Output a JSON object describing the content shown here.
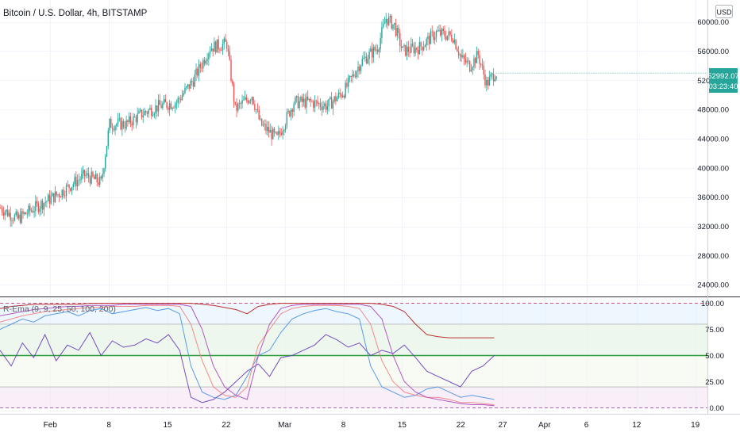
{
  "header": {
    "title": "Bitcoin / U.S. Dollar, 4h, BITSTAMP",
    "currency": "USD"
  },
  "price_badge": {
    "price": "52992.07",
    "countdown": "03:23:40"
  },
  "indicator": {
    "label": "R-Ema (9, 9, 25, 50, 100, 200)"
  },
  "colors": {
    "up": "#26a69a",
    "down": "#ef5350",
    "badge": "#26a69a",
    "mid_line": "#2e9c3a",
    "upper_dashed": "#c2185b",
    "lower_dashed": "#9c27b0"
  },
  "chart_data": [
    {
      "type": "candlestick",
      "title": "Bitcoin / U.S. Dollar, 4h, BITSTAMP",
      "y_axis_labels": [
        "60000.00",
        "56000.00",
        "52000.00",
        "48000.00",
        "44000.00",
        "40000.00",
        "36000.00",
        "32000.00",
        "28000.00",
        "24000.00"
      ],
      "ylim": [
        22500,
        63000
      ],
      "x_axis_labels": [
        "Feb",
        "8",
        "15",
        "22",
        "Mar",
        "8",
        "15",
        "22",
        "27",
        "Apr",
        "6",
        "12",
        "19"
      ],
      "last_price": 52992.07,
      "approx_close_path": [
        {
          "date": "2021-01-26",
          "price": 34500
        },
        {
          "date": "2021-01-28",
          "price": 33000
        },
        {
          "date": "2021-01-30",
          "price": 34500
        },
        {
          "date": "2021-02-02",
          "price": 36500
        },
        {
          "date": "2021-02-05",
          "price": 39000
        },
        {
          "date": "2021-02-07",
          "price": 38000
        },
        {
          "date": "2021-02-08",
          "price": 46000
        },
        {
          "date": "2021-02-10",
          "price": 46000
        },
        {
          "date": "2021-02-12",
          "price": 47500
        },
        {
          "date": "2021-02-14",
          "price": 48500
        },
        {
          "date": "2021-02-16",
          "price": 49000
        },
        {
          "date": "2021-02-18",
          "price": 52000
        },
        {
          "date": "2021-02-20",
          "price": 56500
        },
        {
          "date": "2021-02-22",
          "price": 57000
        },
        {
          "date": "2021-02-23",
          "price": 48000
        },
        {
          "date": "2021-02-25",
          "price": 50000
        },
        {
          "date": "2021-02-26",
          "price": 46000
        },
        {
          "date": "2021-02-28",
          "price": 44000
        },
        {
          "date": "2021-03-02",
          "price": 49000
        },
        {
          "date": "2021-03-04",
          "price": 49000
        },
        {
          "date": "2021-03-06",
          "price": 48500
        },
        {
          "date": "2021-03-08",
          "price": 50500
        },
        {
          "date": "2021-03-10",
          "price": 54500
        },
        {
          "date": "2021-03-12",
          "price": 56500
        },
        {
          "date": "2021-03-13",
          "price": 60500
        },
        {
          "date": "2021-03-14",
          "price": 59500
        },
        {
          "date": "2021-03-15",
          "price": 56000
        },
        {
          "date": "2021-03-17",
          "price": 56500
        },
        {
          "date": "2021-03-19",
          "price": 58500
        },
        {
          "date": "2021-03-21",
          "price": 58000
        },
        {
          "date": "2021-03-22",
          "price": 55000
        },
        {
          "date": "2021-03-23",
          "price": 54000
        },
        {
          "date": "2021-03-24",
          "price": 55500
        },
        {
          "date": "2021-03-25",
          "price": 51500
        },
        {
          "date": "2021-03-26",
          "price": 53000
        }
      ]
    },
    {
      "type": "line",
      "title": "R-Ema (9, 9, 25, 50, 100, 200)",
      "y_axis_labels": [
        "100.00",
        "75.00",
        "50.00",
        "25.00",
        "0.00"
      ],
      "ylim": [
        -5,
        105
      ],
      "bands": [
        0,
        20,
        50,
        80,
        100
      ],
      "series": [
        {
          "color": "#673ab7",
          "values": [
            55,
            40,
            62,
            48,
            70,
            45,
            60,
            55,
            72,
            50,
            64,
            58,
            60,
            66,
            62,
            70,
            55,
            10,
            5,
            8,
            15,
            25,
            35,
            42,
            30,
            48,
            50,
            55,
            60,
            70,
            65,
            58,
            62,
            50,
            55,
            52,
            60,
            48,
            35,
            30,
            25,
            20,
            35,
            40,
            50
          ]
        },
        {
          "color": "#4a90e2",
          "values": [
            75,
            80,
            85,
            82,
            88,
            90,
            92,
            88,
            93,
            95,
            90,
            92,
            94,
            96,
            93,
            95,
            90,
            40,
            15,
            10,
            8,
            12,
            30,
            50,
            55,
            72,
            85,
            90,
            93,
            95,
            92,
            90,
            85,
            40,
            20,
            15,
            10,
            12,
            18,
            20,
            15,
            10,
            12,
            10,
            8
          ]
        },
        {
          "color": "#f08080",
          "values": [
            82,
            85,
            88,
            90,
            92,
            93,
            94,
            95,
            96,
            96,
            97,
            97,
            97,
            98,
            98,
            98,
            97,
            80,
            45,
            20,
            12,
            10,
            20,
            60,
            75,
            90,
            95,
            97,
            98,
            98,
            98,
            97,
            95,
            80,
            45,
            25,
            15,
            12,
            10,
            10,
            8,
            5,
            5,
            4,
            3
          ]
        },
        {
          "color": "#ab47bc",
          "values": [
            88,
            90,
            92,
            94,
            95,
            96,
            97,
            97,
            98,
            98,
            98,
            99,
            99,
            99,
            99,
            99,
            99,
            97,
            75,
            40,
            20,
            12,
            8,
            50,
            80,
            95,
            98,
            99,
            99,
            99,
            99,
            99,
            99,
            97,
            85,
            50,
            25,
            15,
            10,
            8,
            6,
            4,
            3,
            3,
            2
          ]
        },
        {
          "color": "#b71c1c",
          "values": [
            95,
            97,
            98,
            99,
            99,
            99,
            99,
            99,
            100,
            100,
            100,
            100,
            100,
            100,
            100,
            100,
            100,
            100,
            99,
            98,
            96,
            94,
            90,
            97,
            99,
            100,
            100,
            100,
            100,
            100,
            100,
            100,
            100,
            100,
            99,
            97,
            92,
            80,
            70,
            68,
            67,
            67,
            67,
            67,
            67
          ]
        }
      ]
    }
  ]
}
